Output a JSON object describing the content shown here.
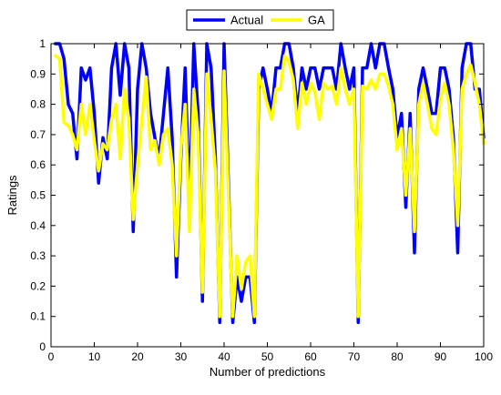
{
  "chart_data": {
    "type": "line",
    "title": "",
    "xlabel": "Number of predictions",
    "ylabel": "Ratings",
    "xlim": [
      0,
      100
    ],
    "ylim": [
      0,
      1
    ],
    "xticks": [
      0,
      10,
      20,
      30,
      40,
      50,
      60,
      70,
      80,
      90,
      100
    ],
    "yticks": [
      0,
      0.1,
      0.2,
      0.3,
      0.4,
      0.5,
      0.6,
      0.7,
      0.8,
      0.9,
      1
    ],
    "xtick_labels": [
      "0",
      "10",
      "20",
      "30",
      "40",
      "50",
      "60",
      "70",
      "80",
      "90",
      "100"
    ],
    "ytick_labels": [
      "0",
      "0.1",
      "0.2",
      "0.3",
      "0.4",
      "0.5",
      "0.6",
      "0.7",
      "0.8",
      "0.9",
      "1"
    ],
    "grid": false,
    "legend": {
      "position": "top-center",
      "orientation": "horizontal"
    },
    "x": [
      1,
      2,
      3,
      4,
      5,
      6,
      7,
      8,
      9,
      10,
      11,
      12,
      13,
      14,
      15,
      16,
      17,
      18,
      19,
      20,
      21,
      22,
      23,
      24,
      25,
      26,
      27,
      28,
      29,
      30,
      31,
      32,
      33,
      34,
      35,
      36,
      37,
      38,
      39,
      40,
      41,
      42,
      43,
      44,
      45,
      46,
      47,
      48,
      49,
      50,
      51,
      52,
      53,
      54,
      55,
      56,
      57,
      58,
      59,
      60,
      61,
      62,
      63,
      64,
      65,
      66,
      67,
      68,
      69,
      70,
      71,
      72,
      73,
      74,
      75,
      76,
      77,
      78,
      79,
      80,
      81,
      82,
      83,
      84,
      85,
      86,
      87,
      88,
      89,
      90,
      91,
      92,
      93,
      94,
      95,
      96,
      97,
      98,
      99,
      100
    ],
    "series": [
      {
        "name": "Actual",
        "color": "#0000ff",
        "values": [
          1,
          1,
          0.95,
          0.8,
          0.77,
          0.62,
          0.92,
          0.88,
          0.92,
          0.77,
          0.54,
          0.69,
          0.62,
          0.92,
          1,
          0.83,
          1,
          0.92,
          0.38,
          0.85,
          1,
          0.92,
          0.77,
          0.69,
          0.62,
          0.77,
          0.92,
          0.69,
          0.23,
          0.62,
          0.92,
          0.46,
          1,
          0.77,
          0.15,
          1,
          0.92,
          0.62,
          0.08,
          1,
          0.54,
          0.08,
          0.23,
          0.15,
          0.23,
          0.23,
          0.08,
          0.85,
          0.92,
          0.85,
          0.77,
          0.92,
          0.92,
          1,
          1,
          0.92,
          0.77,
          0.92,
          0.85,
          0.92,
          0.92,
          0.85,
          0.92,
          0.92,
          0.92,
          0.85,
          1,
          0.92,
          0.85,
          0.92,
          0.08,
          0.92,
          0.92,
          1,
          0.92,
          1,
          1,
          0.92,
          0.85,
          0.69,
          0.77,
          0.46,
          0.77,
          0.31,
          0.85,
          0.92,
          0.85,
          0.77,
          0.77,
          0.92,
          0.92,
          0.85,
          0.69,
          0.31,
          0.92,
          1,
          1,
          0.85,
          0.85,
          0.69
        ]
      },
      {
        "name": "GA",
        "color": "#ffff00",
        "values": [
          0.96,
          0.95,
          0.74,
          0.73,
          0.7,
          0.65,
          0.8,
          0.7,
          0.8,
          0.68,
          0.58,
          0.67,
          0.65,
          0.75,
          0.8,
          0.62,
          0.85,
          0.75,
          0.42,
          0.6,
          0.75,
          0.89,
          0.65,
          0.68,
          0.6,
          0.7,
          0.72,
          0.6,
          0.3,
          0.65,
          0.8,
          0.38,
          0.85,
          0.7,
          0.18,
          0.9,
          0.75,
          0.58,
          0.1,
          0.91,
          0.5,
          0.1,
          0.3,
          0.19,
          0.28,
          0.3,
          0.1,
          0.9,
          0.85,
          0.8,
          0.75,
          0.85,
          0.85,
          0.96,
          0.94,
          0.88,
          0.72,
          0.87,
          0.8,
          0.87,
          0.84,
          0.75,
          0.87,
          0.85,
          0.86,
          0.8,
          0.92,
          0.85,
          0.8,
          0.85,
          0.1,
          0.86,
          0.85,
          0.88,
          0.85,
          0.9,
          0.9,
          0.86,
          0.8,
          0.65,
          0.72,
          0.5,
          0.72,
          0.38,
          0.8,
          0.87,
          0.8,
          0.72,
          0.7,
          0.82,
          0.87,
          0.8,
          0.65,
          0.4,
          0.85,
          0.9,
          0.93,
          0.87,
          0.8,
          0.67
        ]
      }
    ]
  }
}
